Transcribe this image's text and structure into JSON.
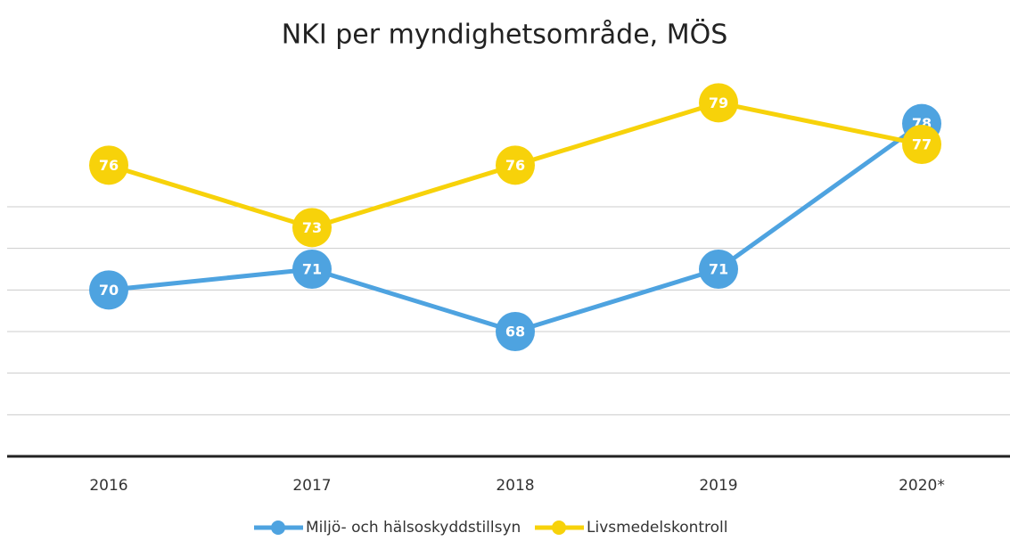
{
  "chart_data": {
    "type": "line",
    "title": "NKI per myndighetsområde, MÖS",
    "categories": [
      "2016",
      "2017",
      "2018",
      "2019",
      "2020*"
    ],
    "series": [
      {
        "name": "Miljö- och hälsoskyddstillsyn",
        "color": "#4ea3e0",
        "values": [
          70,
          71,
          68,
          71,
          78
        ]
      },
      {
        "name": "Livsmedelskontroll",
        "color": "#f7d20a",
        "values": [
          76,
          73,
          76,
          79,
          77
        ]
      }
    ],
    "ylim": [
      62,
      80
    ],
    "yticks": [
      62,
      64,
      66,
      68,
      70,
      72,
      74
    ],
    "grid": true,
    "legend": "bottom"
  }
}
